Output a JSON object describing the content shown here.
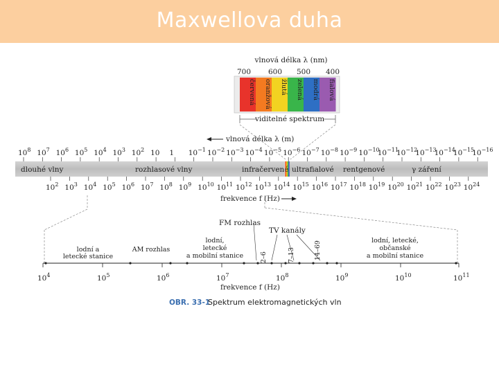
{
  "title": "Maxwellova duha",
  "visible": {
    "header": "vlnová délka λ (nm)",
    "ticks": [
      "700",
      "600",
      "500",
      "400"
    ],
    "bands": [
      {
        "label": "červená",
        "color": "#e8332b"
      },
      {
        "label": "oranžová",
        "color": "#f47a20"
      },
      {
        "label": "žlutá",
        "color": "#f2d321"
      },
      {
        "label": "zelená",
        "color": "#39b54a"
      },
      {
        "label": "modrá",
        "color": "#2e6fc4"
      },
      {
        "label": "fialová",
        "color": "#9a5bb0"
      }
    ],
    "footer": "viditelné spektrum"
  },
  "main": {
    "wavelength_label": "vlnová délka λ (m)",
    "wavelength_exponents": [
      "8",
      "7",
      "6",
      "5",
      "4",
      "3",
      "2",
      "",
      "",
      "−1",
      "−2",
      "−3",
      "−4",
      "−5",
      "−6",
      "−7",
      "−8",
      "−9",
      "−10",
      "−11",
      "−12",
      "−13",
      "−14",
      "−15",
      "−16"
    ],
    "wavelength_bases": [
      "10",
      "10",
      "10",
      "10",
      "10",
      "10",
      "10",
      "10",
      "1",
      "10",
      "10",
      "10",
      "10",
      "10",
      "10",
      "10",
      "10",
      "10",
      "10",
      "10",
      "10",
      "10",
      "10",
      "10",
      "10"
    ],
    "bands": [
      "dlouhé vlny",
      "rozhlasové vlny",
      "infračervené",
      "ultrafialové",
      "rentgenové",
      "γ záření"
    ],
    "frequency_exponents": [
      "2",
      "3",
      "4",
      "5",
      "6",
      "7",
      "8",
      "9",
      "10",
      "11",
      "12",
      "13",
      "14",
      "15",
      "16",
      "17",
      "18",
      "19",
      "20",
      "21",
      "22",
      "23",
      "24"
    ],
    "frequency_label": "frekvence f (Hz)"
  },
  "detail": {
    "labels": {
      "fm": "FM rozhlas",
      "tv": "TV kanály",
      "ship_line1": "lodní a",
      "ship_line2": "letecké stanice",
      "am": "AM rozhlas",
      "mobile_line1": "lodní,",
      "mobile_line2": "letecké",
      "mobile_line3": "a mobilní stanice",
      "ch1": "2–6",
      "ch2": "7–13",
      "ch3": "14–69",
      "right_line1": "lodní, letecké,",
      "right_line2": "občanské",
      "right_line3": "a mobilní stanice"
    },
    "freq_exponents": [
      "4",
      "5",
      "6",
      "7",
      "8",
      "9",
      "10",
      "11"
    ],
    "freq_label": "frekvence f (Hz)"
  },
  "caption": {
    "number": "OBR. 33-1",
    "text": "Spektrum elektromagnetických vln"
  }
}
